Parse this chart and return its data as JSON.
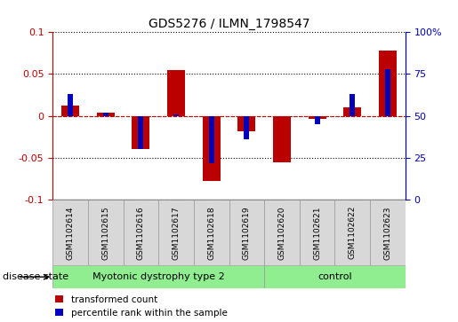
{
  "title": "GDS5276 / ILMN_1798547",
  "samples": [
    "GSM1102614",
    "GSM1102615",
    "GSM1102616",
    "GSM1102617",
    "GSM1102618",
    "GSM1102619",
    "GSM1102620",
    "GSM1102621",
    "GSM1102622",
    "GSM1102623"
  ],
  "red_values": [
    0.012,
    0.004,
    -0.04,
    0.055,
    -0.078,
    -0.018,
    -0.055,
    -0.004,
    0.01,
    0.078
  ],
  "blue_percentiles": [
    63,
    52,
    30,
    51,
    22,
    36,
    50,
    45,
    63,
    78
  ],
  "ylim_left": [
    -0.1,
    0.1
  ],
  "ylim_right": [
    0,
    100
  ],
  "yticks_left": [
    -0.1,
    -0.05,
    0.0,
    0.05,
    0.1
  ],
  "ytick_labels_left": [
    "-0.1",
    "-0.05",
    "0",
    "0.05",
    "0.1"
  ],
  "yticks_right": [
    0,
    25,
    50,
    75,
    100
  ],
  "ytick_labels_right": [
    "0",
    "25",
    "50",
    "75",
    "100%"
  ],
  "red_color": "#bb0000",
  "blue_color": "#0000bb",
  "zero_line_color": "#cc0000",
  "group1_label": "Myotonic dystrophy type 2",
  "group2_label": "control",
  "group1_color": "#90ee90",
  "group2_color": "#90ee90",
  "group1_count": 6,
  "group2_count": 4,
  "disease_state_label": "disease state",
  "legend_red": "transformed count",
  "legend_blue": "percentile rank within the sample",
  "red_bar_width": 0.5,
  "blue_bar_width": 0.15,
  "sample_box_color": "#d8d8d8",
  "grid_color": "black",
  "grid_style": "dotted"
}
